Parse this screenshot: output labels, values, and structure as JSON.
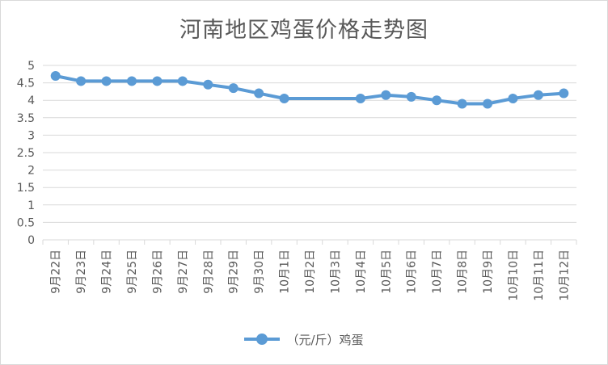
{
  "chart_data": {
    "type": "line",
    "title": "河南地区鸡蛋价格走势图",
    "categories": [
      "9月22日",
      "9月23日",
      "9月24日",
      "9月25日",
      "9月26日",
      "9月27日",
      "9月28日",
      "9月29日",
      "9月30日",
      "10月1日",
      "10月2日",
      "10月3日",
      "10月4日",
      "10月5日",
      "10月6日",
      "10月7日",
      "10月8日",
      "10月9日",
      "10月10日",
      "10月11日",
      "10月12日"
    ],
    "series": [
      {
        "name": "（元/斤）鸡蛋",
        "color": "#5b9bd5",
        "values": [
          4.7,
          4.55,
          4.55,
          4.55,
          4.55,
          4.55,
          4.45,
          4.35,
          4.2,
          4.05,
          null,
          null,
          4.05,
          4.15,
          4.1,
          4.0,
          3.9,
          3.9,
          4.05,
          4.15,
          4.2
        ]
      }
    ],
    "yticks": [
      "0",
      "0.5",
      "1",
      "1.5",
      "2",
      "2.5",
      "3",
      "3.5",
      "4",
      "4.5",
      "5"
    ],
    "ylim": [
      0,
      5
    ],
    "grid": true,
    "legend": "bottom"
  }
}
